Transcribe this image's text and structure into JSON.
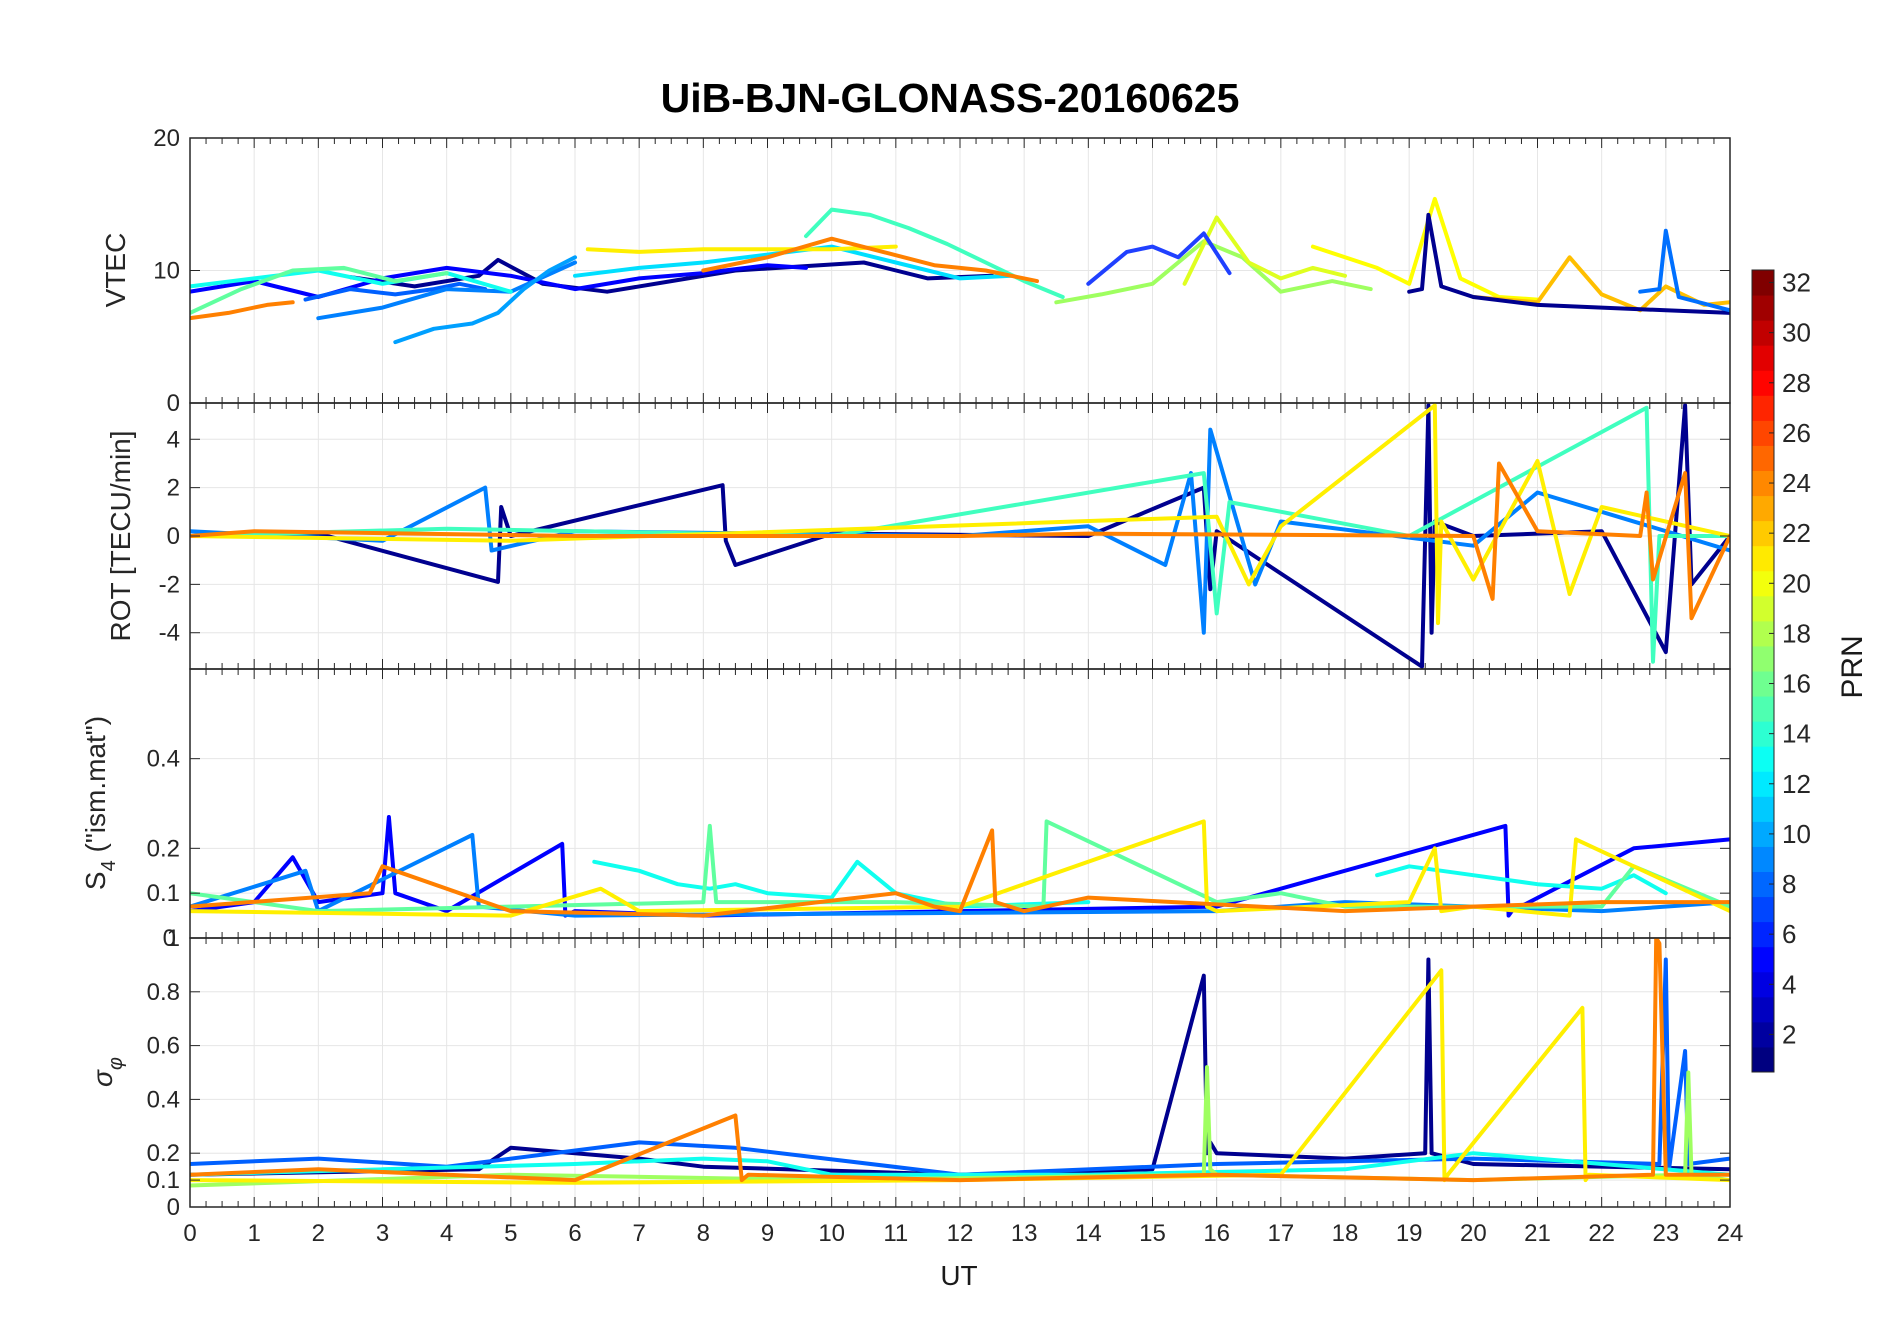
{
  "figure": {
    "title": "UiB-BJN-GLONASS-20160625",
    "xlabel": "UT",
    "colorbar_label": "PRN"
  },
  "chart_data": [
    {
      "type": "line",
      "panel": "vtec",
      "ylabel": "VTEC",
      "xlim": [
        0,
        24
      ],
      "ylim": [
        0,
        20
      ],
      "yticks": [
        0,
        10,
        20
      ],
      "grid": true,
      "series": [
        {
          "color": "#00008F",
          "x": [
            2.5,
            3.5,
            4.5,
            4.8,
            5.5,
            6.5,
            7.5,
            8.5,
            9.5,
            10.5,
            11.5,
            12.5
          ],
          "values": [
            9.5,
            8.8,
            9.6,
            10.8,
            9.0,
            8.4,
            9.2,
            10.0,
            10.3,
            10.6,
            9.4,
            9.6
          ]
        },
        {
          "color": "#0000FF",
          "x": [
            0,
            1,
            2,
            3,
            4,
            5,
            6,
            7,
            8,
            9,
            9.6
          ],
          "values": [
            8.4,
            9.2,
            8.0,
            9.4,
            10.2,
            9.6,
            8.6,
            9.4,
            9.8,
            10.4,
            10.2
          ]
        },
        {
          "color": "#0060FF",
          "x": [
            1.8,
            2.5,
            3.2,
            3.8,
            4.2,
            4.6
          ],
          "values": [
            7.8,
            8.6,
            8.2,
            8.6,
            9.0,
            8.6
          ]
        },
        {
          "color": "#0080FF",
          "x": [
            2,
            3,
            4,
            5,
            6
          ],
          "values": [
            6.4,
            7.2,
            8.6,
            8.4,
            10.6
          ]
        },
        {
          "color": "#00A0FF",
          "x": [
            3.2,
            3.8,
            4.4,
            4.8,
            5.2,
            5.6,
            6.0
          ],
          "values": [
            4.6,
            5.6,
            6.0,
            6.8,
            8.6,
            10.0,
            11.0
          ]
        },
        {
          "color": "#00DFFF",
          "x": [
            6,
            7,
            8,
            9,
            10,
            11,
            12,
            12.8
          ],
          "values": [
            9.6,
            10.2,
            10.6,
            11.2,
            11.8,
            10.6,
            9.4,
            9.6
          ]
        },
        {
          "color": "#10FFEF",
          "x": [
            0,
            1,
            2,
            3,
            4,
            5
          ],
          "values": [
            8.8,
            9.4,
            10.0,
            9.0,
            9.8,
            8.4
          ]
        },
        {
          "color": "#40FFBF",
          "x": [
            9.6,
            10,
            10.6,
            11.2,
            11.8,
            12.4,
            13,
            13.6
          ],
          "values": [
            12.6,
            14.6,
            14.2,
            13.2,
            12.0,
            10.6,
            9.2,
            8.0
          ]
        },
        {
          "color": "#60FF9F",
          "x": [
            0,
            0.8,
            1.6,
            2.4,
            3.2,
            4
          ],
          "values": [
            6.8,
            8.6,
            10.0,
            10.2,
            9.2,
            9.8
          ]
        },
        {
          "color": "#9FFF60",
          "x": [
            13.5,
            14.2,
            15,
            15.8,
            16.4,
            17,
            17.8,
            18.4
          ],
          "values": [
            7.6,
            8.2,
            9.0,
            12.2,
            11.0,
            8.4,
            9.2,
            8.6
          ]
        },
        {
          "color": "#DFFF20",
          "x": [
            15.5,
            16,
            16.5,
            17,
            17.5,
            18
          ],
          "values": [
            9.0,
            14.0,
            10.6,
            9.4,
            10.2,
            9.6
          ]
        },
        {
          "color": "#FFEF00",
          "x": [
            6.2,
            7,
            8,
            9,
            10,
            11
          ],
          "values": [
            11.6,
            11.4,
            11.6,
            11.6,
            11.6,
            11.8
          ]
        },
        {
          "color": "#FFFF00",
          "x": [
            17.5,
            18.5,
            19,
            19.4,
            19.8,
            20.4,
            21
          ],
          "values": [
            11.8,
            10.2,
            9.0,
            15.4,
            9.4,
            8.0,
            7.8
          ]
        },
        {
          "color": "#FFBF00",
          "x": [
            20,
            21,
            21.5,
            22,
            22.6,
            23,
            23.6,
            24
          ],
          "values": [
            8.0,
            7.6,
            11.0,
            8.2,
            7.0,
            8.8,
            7.4,
            7.6
          ]
        },
        {
          "color": "#FF8000",
          "x": [
            0,
            0.6,
            1.2,
            1.6
          ],
          "values": [
            6.4,
            6.8,
            7.4,
            7.6
          ]
        },
        {
          "color": "#FF8000",
          "x": [
            8,
            9,
            10,
            10.8,
            11.6,
            12.4,
            13.2
          ],
          "values": [
            10.0,
            11.0,
            12.4,
            11.4,
            10.4,
            10.0,
            9.2
          ]
        },
        {
          "color": "#2040FF",
          "x": [
            14,
            14.6,
            15,
            15.4,
            15.8,
            16.2
          ],
          "values": [
            9.0,
            11.4,
            11.8,
            11.0,
            12.8,
            9.8
          ]
        },
        {
          "color": "#00008F",
          "x": [
            19,
            19.2,
            19.3,
            19.5,
            20,
            21,
            22,
            23,
            24
          ],
          "values": [
            8.4,
            8.6,
            14.2,
            8.8,
            8.0,
            7.4,
            7.2,
            7.0,
            6.8
          ]
        },
        {
          "color": "#0070FF",
          "x": [
            22.6,
            22.9,
            23,
            23.2,
            24
          ],
          "values": [
            8.4,
            8.6,
            13.0,
            8.0,
            7.0
          ]
        }
      ]
    },
    {
      "type": "line",
      "panel": "rot",
      "ylabel": "ROT [TECU/min]",
      "xlim": [
        0,
        24
      ],
      "ylim": [
        -5.5,
        5.5
      ],
      "yticks": [
        -4,
        -2,
        0,
        2,
        4
      ],
      "grid": true,
      "series": [
        {
          "color": "#00008F",
          "x": [
            0,
            2,
            4.8,
            4.85,
            5,
            8.3,
            8.35,
            8.5,
            10,
            14,
            15.8,
            15.9,
            16,
            19.2,
            19.3,
            19.35,
            19.4,
            20,
            22,
            23,
            23.3,
            23.4,
            24
          ],
          "values": [
            0,
            0.1,
            -1.9,
            1.2,
            0,
            2.1,
            -0.2,
            -1.2,
            0.1,
            0,
            2.0,
            -2.2,
            0.2,
            -5.4,
            5.4,
            -4.0,
            0.6,
            0,
            0.2,
            -4.8,
            5.4,
            -2.0,
            0
          ]
        },
        {
          "color": "#0080FF",
          "x": [
            0,
            3,
            4.6,
            4.7,
            6,
            12,
            14,
            15.2,
            15.6,
            15.8,
            15.9,
            16.6,
            17,
            20,
            21,
            24
          ],
          "values": [
            0.2,
            -0.2,
            2.0,
            -0.6,
            0.2,
            0,
            0.4,
            -1.2,
            2.6,
            -4.0,
            4.4,
            -2.0,
            0.6,
            -0.4,
            1.8,
            -0.6
          ]
        },
        {
          "color": "#40FFBF",
          "x": [
            0,
            4,
            10,
            15.8,
            16,
            16.2,
            19,
            22.7,
            22.8,
            22.9,
            24
          ],
          "values": [
            0,
            0.3,
            0,
            2.6,
            -3.2,
            1.4,
            0,
            5.3,
            -5.2,
            0,
            0
          ]
        },
        {
          "color": "#FFEF00",
          "x": [
            0,
            5,
            16,
            16.5,
            17,
            19.4,
            19.45,
            19.5,
            20,
            21,
            21.5,
            22,
            24
          ],
          "values": [
            0,
            -0.2,
            0.8,
            -2.0,
            0.4,
            5.4,
            -3.6,
            0.6,
            -1.8,
            3.1,
            -2.4,
            1.2,
            0
          ]
        },
        {
          "color": "#FF8000",
          "x": [
            0,
            1,
            6,
            12,
            14,
            20,
            20.3,
            20.4,
            21,
            22.6,
            22.7,
            22.8,
            23.3,
            23.4,
            24
          ],
          "values": [
            0,
            0.2,
            0,
            0,
            0.1,
            0,
            -2.6,
            3.0,
            0.2,
            0,
            1.8,
            -1.8,
            2.6,
            -3.4,
            0
          ]
        }
      ]
    },
    {
      "type": "line",
      "panel": "s4",
      "ylabel": "S4 (\"ism.mat\")",
      "xlim": [
        0,
        24
      ],
      "ylim": [
        0,
        0.6
      ],
      "yticks": [
        0.1,
        0.2,
        0.4
      ],
      "grid": true,
      "series": [
        {
          "color": "#0000FF",
          "x": [
            0,
            1,
            1.6,
            2,
            3,
            3.1,
            3.2,
            4,
            5.8,
            5.85,
            6,
            8,
            12,
            16,
            20.5,
            20.55,
            20.6,
            22.5,
            24
          ],
          "values": [
            0.06,
            0.08,
            0.18,
            0.08,
            0.1,
            0.27,
            0.1,
            0.06,
            0.21,
            0.05,
            0.06,
            0.05,
            0.06,
            0.07,
            0.25,
            0.05,
            0.06,
            0.2,
            0.22
          ]
        },
        {
          "color": "#0080FF",
          "x": [
            0,
            1.8,
            2,
            4.4,
            4.5,
            6,
            16,
            18,
            20,
            22,
            24
          ],
          "values": [
            0.07,
            0.15,
            0.06,
            0.23,
            0.07,
            0.05,
            0.06,
            0.08,
            0.07,
            0.06,
            0.08
          ]
        },
        {
          "color": "#10FFEF",
          "x": [
            6.3,
            7,
            7.6,
            8.1,
            8.5,
            9,
            10,
            10.4,
            11,
            12,
            14
          ],
          "values": [
            0.17,
            0.15,
            0.12,
            0.11,
            0.12,
            0.1,
            0.09,
            0.17,
            0.1,
            0.07,
            0.08
          ]
        },
        {
          "color": "#10FFEF",
          "x": [
            18.5,
            19,
            20,
            21,
            22,
            22.5,
            23
          ],
          "values": [
            0.14,
            0.16,
            0.14,
            0.12,
            0.11,
            0.14,
            0.1
          ]
        },
        {
          "color": "#60FF9F",
          "x": [
            0,
            2,
            5,
            8,
            8.1,
            8.2,
            11,
            13.3,
            13.35,
            16,
            17,
            18,
            22,
            22.5,
            24
          ],
          "values": [
            0.1,
            0.06,
            0.07,
            0.08,
            0.25,
            0.08,
            0.08,
            0.07,
            0.26,
            0.08,
            0.1,
            0.07,
            0.07,
            0.16,
            0.07
          ]
        },
        {
          "color": "#FFEF00",
          "x": [
            0,
            5,
            6.4,
            7,
            12,
            15.8,
            15.85,
            16,
            19,
            19.4,
            19.5,
            20,
            21.5,
            21.6,
            24
          ],
          "values": [
            0.06,
            0.05,
            0.11,
            0.06,
            0.07,
            0.26,
            0.07,
            0.06,
            0.08,
            0.2,
            0.06,
            0.07,
            0.05,
            0.22,
            0.06
          ]
        },
        {
          "color": "#FF8000",
          "x": [
            0,
            2.8,
            3,
            5,
            8,
            11,
            11.6,
            12,
            12.5,
            12.55,
            13,
            14,
            18,
            22,
            24
          ],
          "values": [
            0.07,
            0.1,
            0.16,
            0.06,
            0.05,
            0.1,
            0.07,
            0.06,
            0.24,
            0.08,
            0.06,
            0.09,
            0.06,
            0.08,
            0.08
          ]
        }
      ]
    },
    {
      "type": "line",
      "panel": "sigma_phi",
      "ylabel": "σφ",
      "xlim": [
        0,
        24
      ],
      "ylim": [
        0,
        1
      ],
      "yticks": [
        0,
        0.1,
        0.2,
        0.4,
        0.6,
        0.8,
        1
      ],
      "grid": true,
      "series": [
        {
          "color": "#00008F",
          "x": [
            0,
            4.5,
            5,
            6,
            7,
            8,
            12,
            15,
            15.8,
            15.85,
            15.9,
            16,
            18,
            19.25,
            19.3,
            19.35,
            20,
            24
          ],
          "values": [
            0.12,
            0.14,
            0.22,
            0.2,
            0.18,
            0.15,
            0.12,
            0.14,
            0.86,
            0.2,
            0.24,
            0.2,
            0.18,
            0.2,
            0.92,
            0.2,
            0.16,
            0.14
          ]
        },
        {
          "color": "#0060FF",
          "x": [
            0,
            2,
            4,
            7,
            8.5,
            12,
            16,
            20,
            22.9,
            23,
            23.05,
            23.3,
            23.35,
            24
          ],
          "values": [
            0.16,
            0.18,
            0.15,
            0.24,
            0.22,
            0.12,
            0.16,
            0.18,
            0.16,
            0.92,
            0.14,
            0.58,
            0.16,
            0.18
          ]
        },
        {
          "color": "#10FFEF",
          "x": [
            0,
            3,
            6,
            8,
            9,
            10,
            14,
            18,
            20,
            24
          ],
          "values": [
            0.12,
            0.14,
            0.16,
            0.18,
            0.17,
            0.12,
            0.12,
            0.14,
            0.2,
            0.12
          ]
        },
        {
          "color": "#9FFF60",
          "x": [
            0,
            5,
            10,
            15.8,
            15.85,
            15.9,
            16,
            20,
            23.3,
            23.35,
            23.4,
            24
          ],
          "values": [
            0.08,
            0.12,
            0.1,
            0.12,
            0.52,
            0.14,
            0.12,
            0.1,
            0.12,
            0.5,
            0.12,
            0.1
          ]
        },
        {
          "color": "#FFEF00",
          "x": [
            0,
            6,
            12,
            17,
            19.5,
            19.55,
            19.6,
            21.7,
            21.75,
            21.8,
            24
          ],
          "values": [
            0.1,
            0.09,
            0.1,
            0.12,
            0.88,
            0.1,
            0.12,
            0.74,
            0.1,
            0.12,
            0.1
          ]
        },
        {
          "color": "#FF8000",
          "x": [
            0,
            2,
            6,
            8.5,
            8.6,
            8.7,
            12,
            16,
            20,
            22.8,
            22.85,
            22.9,
            23,
            24
          ],
          "values": [
            0.12,
            0.14,
            0.1,
            0.34,
            0.1,
            0.12,
            0.1,
            0.12,
            0.1,
            0.12,
            1.0,
            0.98,
            0.12,
            0.12
          ]
        }
      ]
    }
  ],
  "x_axis": {
    "ticks": [
      "0",
      "1",
      "2",
      "3",
      "4",
      "5",
      "6",
      "7",
      "8",
      "9",
      "10",
      "11",
      "12",
      "13",
      "14",
      "15",
      "16",
      "17",
      "18",
      "19",
      "20",
      "21",
      "22",
      "23",
      "24"
    ]
  },
  "colorbar": {
    "range": [
      1,
      32
    ],
    "ticks": [
      "2",
      "4",
      "6",
      "8",
      "10",
      "12",
      "14",
      "16",
      "18",
      "20",
      "22",
      "24",
      "26",
      "28",
      "30",
      "32"
    ]
  },
  "panel_labels": {
    "vtec_top": "20",
    "vtec_mid": "10",
    "vtec_bottom": "0",
    "s4_top_left": "1",
    "s4_top_overlap": "0"
  }
}
